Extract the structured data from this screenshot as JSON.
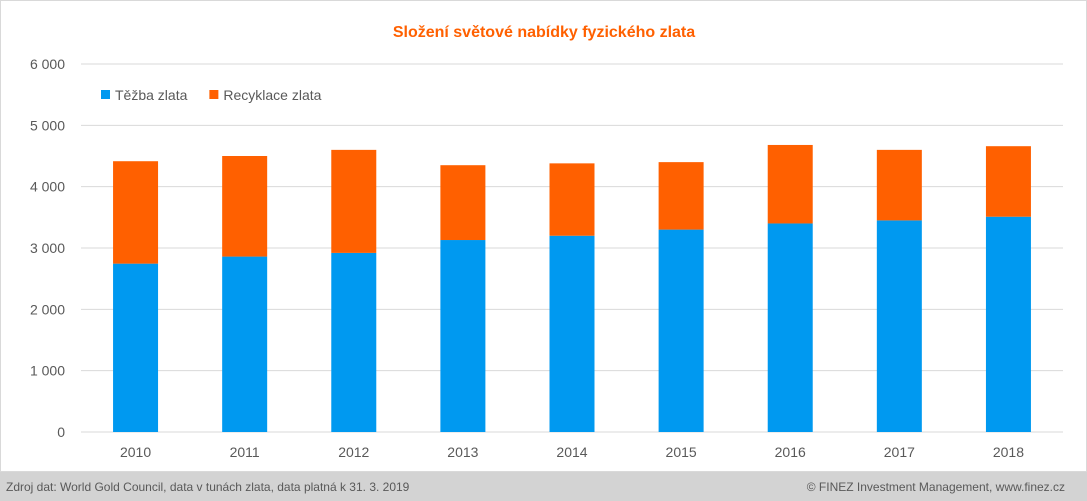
{
  "chart_data": {
    "type": "bar",
    "stacked": true,
    "title": "Složení světové nabídky fyzického zlata",
    "categories": [
      "2010",
      "2011",
      "2012",
      "2013",
      "2014",
      "2015",
      "2016",
      "2017",
      "2018"
    ],
    "series": [
      {
        "name": "Těžba zlata",
        "color": "#0099f0",
        "values": [
          2745,
          2860,
          2920,
          3130,
          3200,
          3300,
          3400,
          3450,
          3510
        ]
      },
      {
        "name": "Recyklace zlata",
        "color": "#ff6000",
        "values": [
          1670,
          1640,
          1680,
          1220,
          1180,
          1100,
          1280,
          1150,
          1150
        ]
      }
    ],
    "ylim": [
      0,
      6000
    ],
    "yticks": [
      0,
      1000,
      2000,
      3000,
      4000,
      5000,
      6000
    ],
    "ytick_labels": [
      "0",
      "1 000",
      "2 000",
      "3 000",
      "4 000",
      "5 000",
      "6 000"
    ],
    "grid": true,
    "legend_position": "top-left",
    "xlabel": "",
    "ylabel": ""
  },
  "colors": {
    "title": "#ff6000",
    "grid": "#d9d9d9",
    "axis_text": "#595959"
  },
  "footer": {
    "source": "Zdroj dat: World Gold Council, data v tunách zlata, data platná k 31. 3. 2019",
    "credit": "© FINEZ Investment Management, www.finez.cz"
  }
}
